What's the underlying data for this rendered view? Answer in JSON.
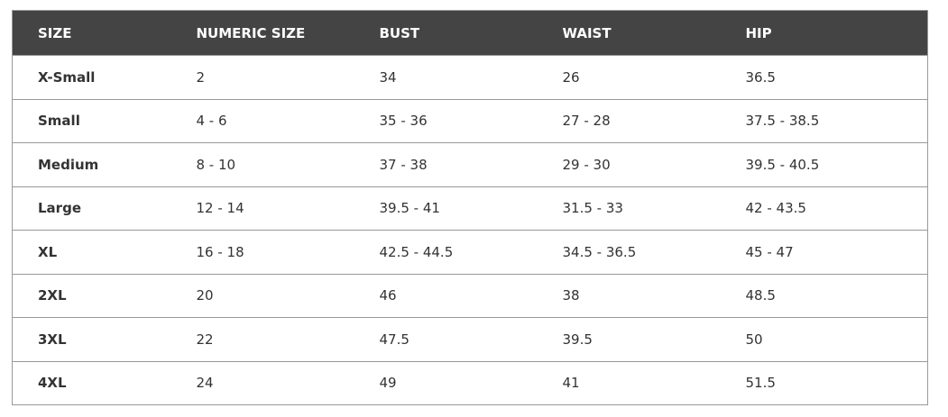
{
  "table": {
    "headers": [
      "SIZE",
      "NUMERIC SIZE",
      "BUST",
      "WAIST",
      "HIP"
    ],
    "rows": [
      [
        "X-Small",
        "2",
        "34",
        "26",
        "36.5"
      ],
      [
        "Small",
        "4 - 6",
        "35 - 36",
        "27 - 28",
        "37.5 - 38.5"
      ],
      [
        "Medium",
        "8 - 10",
        "37 - 38",
        "29 - 30",
        "39.5 - 40.5"
      ],
      [
        "Large",
        "12 - 14",
        "39.5 - 41",
        "31.5 - 33",
        "42 - 43.5"
      ],
      [
        "XL",
        "16 - 18",
        "42.5 - 44.5",
        "34.5 - 36.5",
        "45 - 47"
      ],
      [
        "2XL",
        "20",
        "46",
        "38",
        "48.5"
      ],
      [
        "3XL",
        "22",
        "47.5",
        "39.5",
        "50"
      ],
      [
        "4XL",
        "24",
        "49",
        "41",
        "51.5"
      ]
    ]
  },
  "colors": {
    "header_bg": "#444444",
    "header_text": "#ffffff",
    "border": "#999999"
  }
}
